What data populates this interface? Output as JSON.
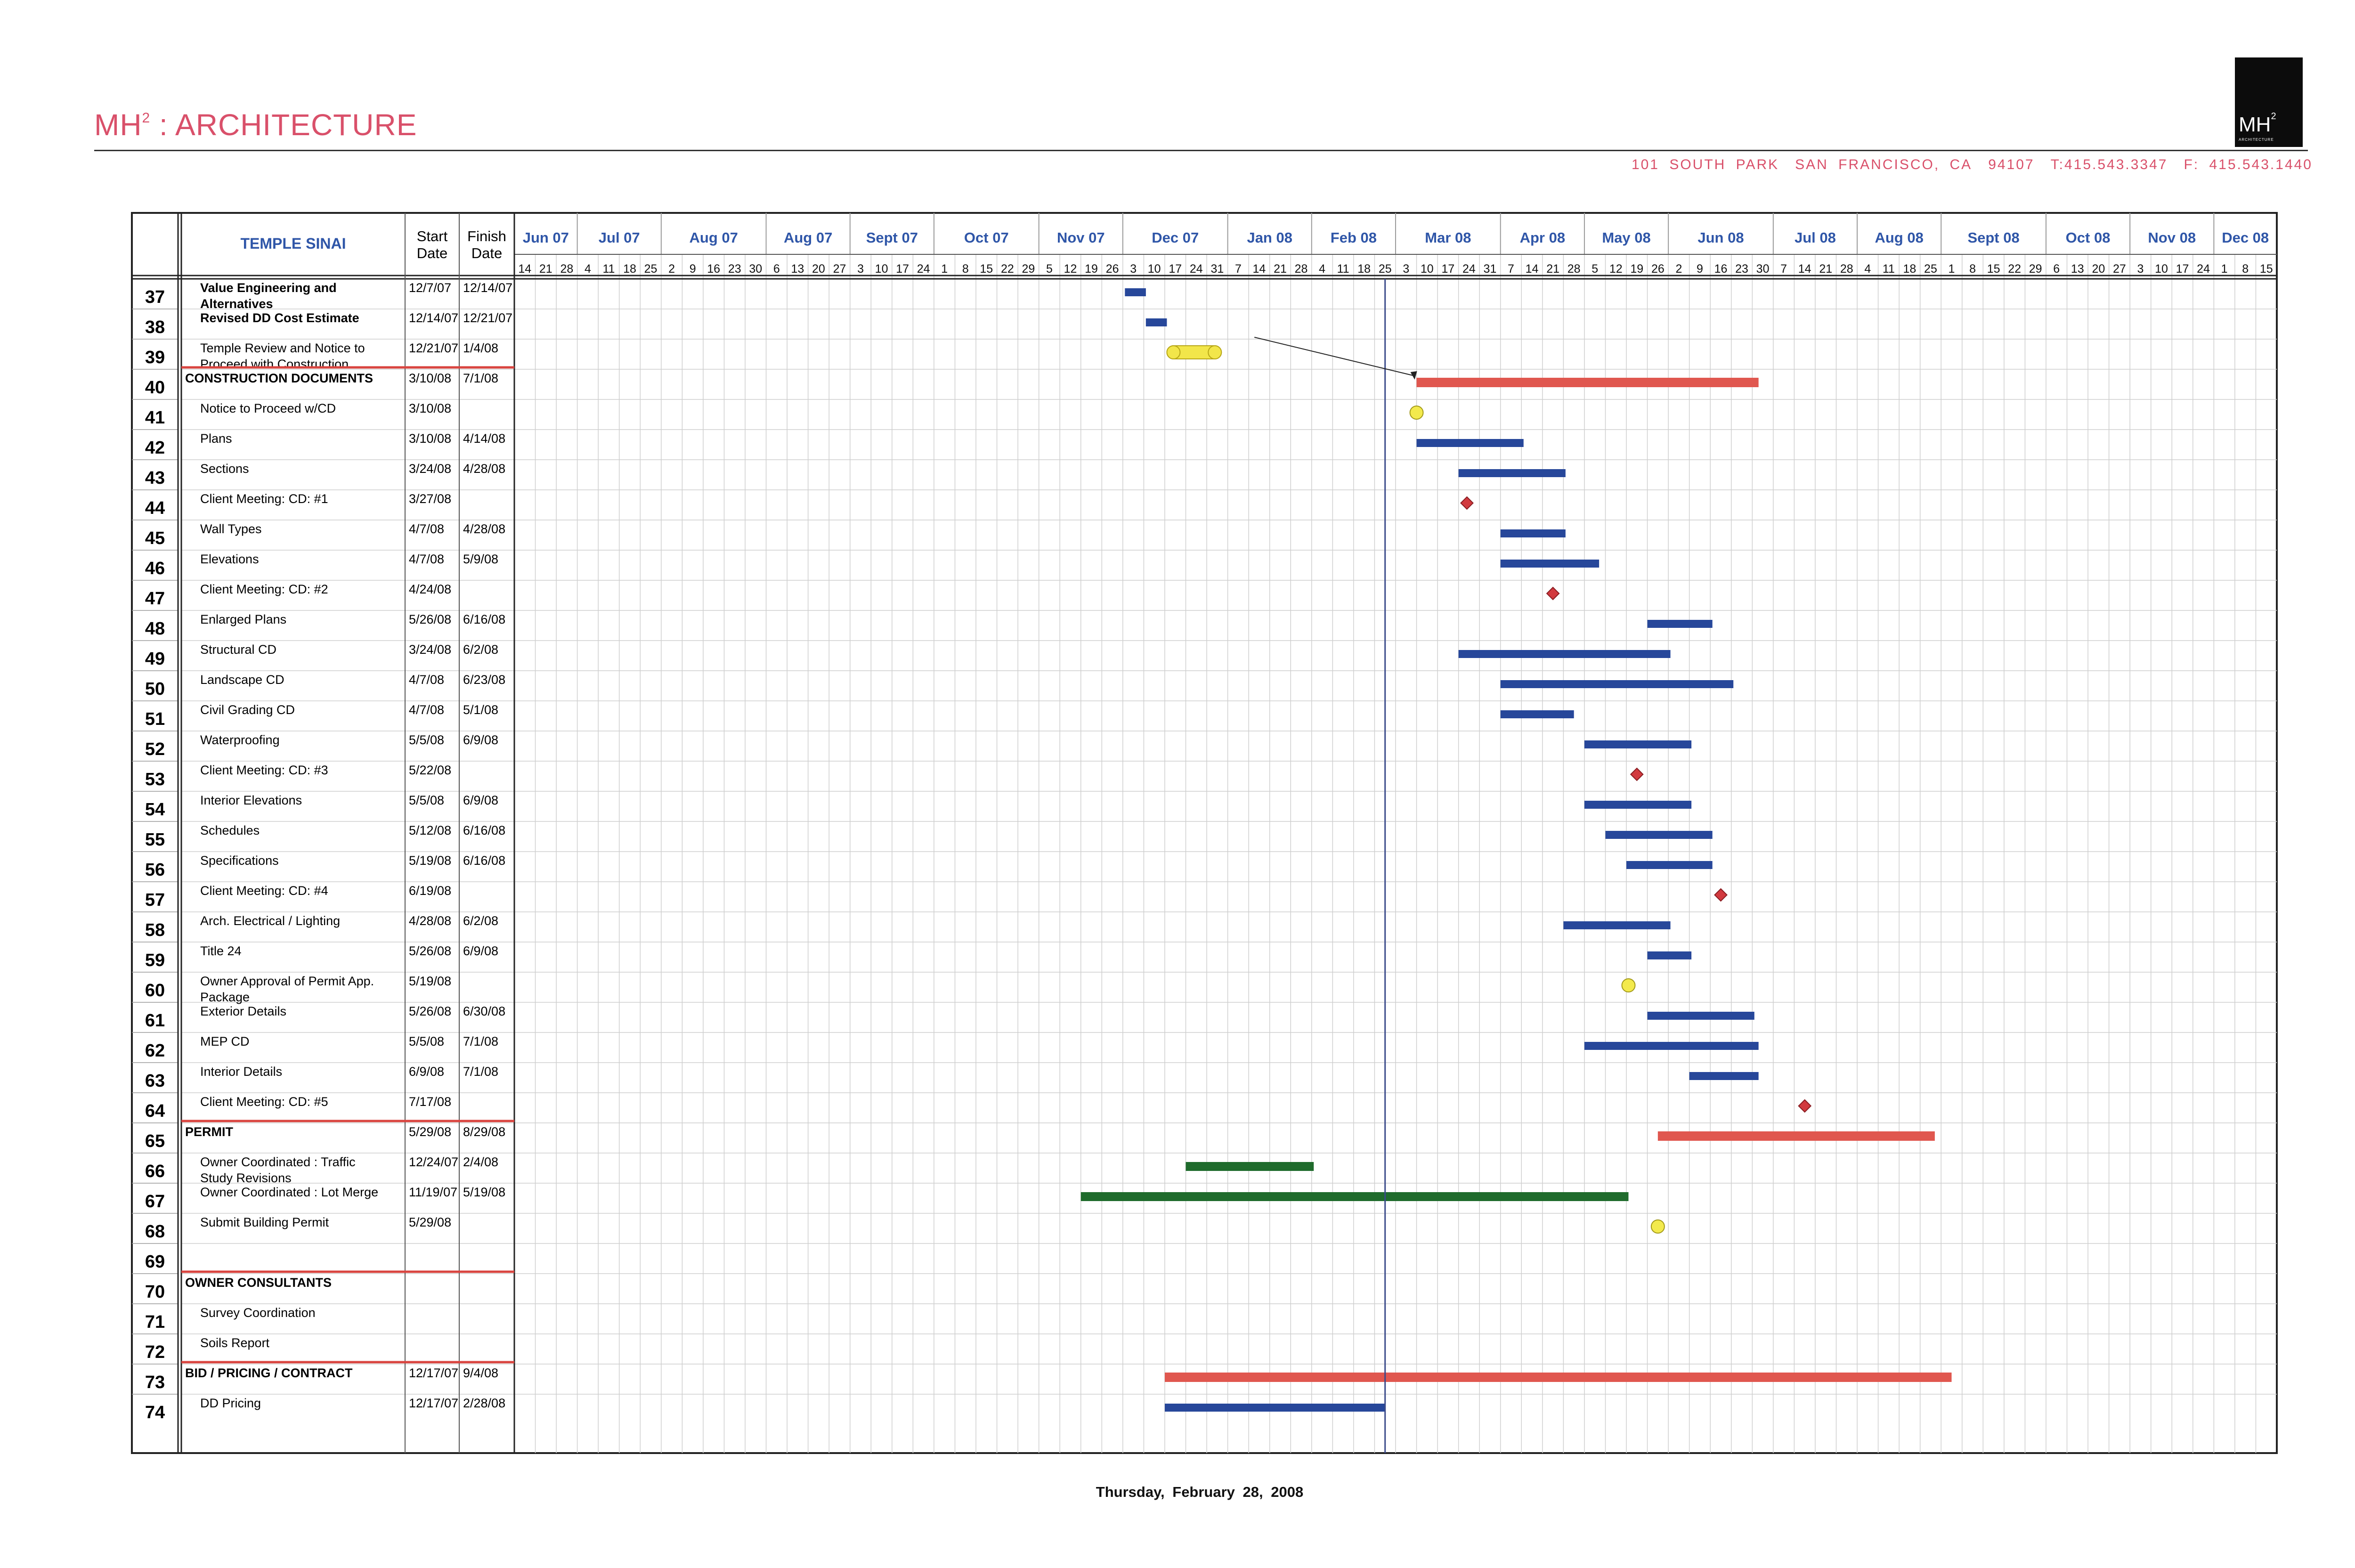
{
  "header": {
    "brand": "MH",
    "brand_sup": "2",
    "brand_rest": " : ARCHITECTURE",
    "logo_mark": "MH",
    "logo_sup": "2",
    "logo_sub": "ARCHITECTURE",
    "address": [
      "101 SOUTH PARK",
      "SAN FRANCISCO, CA",
      "94107",
      "T:415.543.3347",
      "F: 415.543.1440"
    ]
  },
  "table": {
    "project": "TEMPLE SINAI",
    "col_start": [
      "Start",
      "Date"
    ],
    "col_finish": [
      "Finish",
      "Date"
    ]
  },
  "footer": {
    "date": "Thursday,  February  28,  2008"
  },
  "chart_data": {
    "type": "gantt",
    "months": [
      {
        "label": "Jun 07",
        "weeks": [
          "14",
          "21",
          "28"
        ]
      },
      {
        "label": "Jul 07",
        "weeks": [
          "4",
          "11",
          "18",
          "25"
        ]
      },
      {
        "label": "Aug 07",
        "weeks": [
          "2",
          "9",
          "16",
          "23",
          "30"
        ]
      },
      {
        "label": "Aug 07",
        "weeks": [
          "6",
          "13",
          "20",
          "27"
        ]
      },
      {
        "label": "Sept 07",
        "weeks": [
          "3",
          "10",
          "17",
          "24"
        ]
      },
      {
        "label": "Oct 07",
        "weeks": [
          "1",
          "8",
          "15",
          "22",
          "29"
        ]
      },
      {
        "label": "Nov 07",
        "weeks": [
          "5",
          "12",
          "19",
          "26"
        ]
      },
      {
        "label": "Dec 07",
        "weeks": [
          "3",
          "10",
          "17",
          "24",
          "31"
        ]
      },
      {
        "label": "Jan 08",
        "weeks": [
          "7",
          "14",
          "21",
          "28"
        ]
      },
      {
        "label": "Feb 08",
        "weeks": [
          "4",
          "11",
          "18",
          "25"
        ]
      },
      {
        "label": "Mar 08",
        "weeks": [
          "3",
          "10",
          "17",
          "24",
          "31"
        ]
      },
      {
        "label": "Apr 08",
        "weeks": [
          "7",
          "14",
          "21",
          "28"
        ]
      },
      {
        "label": "May 08",
        "weeks": [
          "5",
          "12",
          "19",
          "26"
        ]
      },
      {
        "label": "Jun 08",
        "weeks": [
          "2",
          "9",
          "16",
          "23",
          "30"
        ]
      },
      {
        "label": "Jul 08",
        "weeks": [
          "7",
          "14",
          "21",
          "28"
        ]
      },
      {
        "label": "Aug 08",
        "weeks": [
          "4",
          "11",
          "18",
          "25"
        ]
      },
      {
        "label": "Sept 08",
        "weeks": [
          "1",
          "8",
          "15",
          "22",
          "29"
        ]
      },
      {
        "label": "Oct 08",
        "weeks": [
          "6",
          "13",
          "20",
          "27"
        ]
      },
      {
        "label": "Nov 08",
        "weeks": [
          "3",
          "10",
          "17",
          "24"
        ]
      },
      {
        "label": "Dec 08",
        "weeks": [
          "1",
          "8",
          "15"
        ]
      }
    ],
    "today_week": 41.5,
    "rows": [
      {
        "id": "37",
        "name": "Value Engineering and Alternatives",
        "bold": true,
        "start": "12/7/07",
        "finish": "12/14/07",
        "bar": {
          "s": 29.1,
          "e": 30.1,
          "kind": "task"
        }
      },
      {
        "id": "38",
        "name": "Revised DD Cost Estimate",
        "bold": true,
        "start": "12/14/07",
        "finish": "12/21/07",
        "bar": {
          "s": 30.1,
          "e": 31.1,
          "kind": "task"
        }
      },
      {
        "id": "39",
        "name": "Temple Review and Notice to Proceed with Construction",
        "start": "12/21/07",
        "finish": "1/4/08",
        "bar": {
          "s": 31.1,
          "e": 33.7,
          "kind": "review"
        }
      },
      {
        "id": "40",
        "name": "CONSTRUCTION DOCUMENTS",
        "bold": true,
        "summary": true,
        "start": "3/10/08",
        "finish": "7/1/08",
        "bar": {
          "s": 43.0,
          "e": 59.3,
          "kind": "summary"
        }
      },
      {
        "id": "41",
        "name": "Notice to Proceed w/CD",
        "start": "3/10/08",
        "finish": "",
        "bar": {
          "s": 43.0,
          "kind": "circle"
        }
      },
      {
        "id": "42",
        "name": "Plans",
        "start": "3/10/08",
        "finish": "4/14/08",
        "bar": {
          "s": 43.0,
          "e": 48.1,
          "kind": "task"
        }
      },
      {
        "id": "43",
        "name": "Sections",
        "start": "3/24/08",
        "finish": "4/28/08",
        "bar": {
          "s": 45.0,
          "e": 50.1,
          "kind": "task"
        }
      },
      {
        "id": "44",
        "name": "Client Meeting: CD: #1",
        "start": "3/27/08",
        "finish": "",
        "bar": {
          "s": 45.4,
          "kind": "diamond"
        }
      },
      {
        "id": "45",
        "name": "Wall Types",
        "start": "4/7/08",
        "finish": "4/28/08",
        "bar": {
          "s": 47.0,
          "e": 50.1,
          "kind": "task"
        }
      },
      {
        "id": "46",
        "name": "Elevations",
        "start": "4/7/08",
        "finish": "5/9/08",
        "bar": {
          "s": 47.0,
          "e": 51.7,
          "kind": "task"
        }
      },
      {
        "id": "47",
        "name": "Client Meeting: CD: #2",
        "start": "4/24/08",
        "finish": "",
        "bar": {
          "s": 49.5,
          "kind": "diamond"
        }
      },
      {
        "id": "48",
        "name": "Enlarged Plans",
        "start": "5/26/08",
        "finish": "6/16/08",
        "bar": {
          "s": 54.0,
          "e": 57.1,
          "kind": "task"
        }
      },
      {
        "id": "49",
        "name": "Structural CD",
        "start": "3/24/08",
        "finish": "6/2/08",
        "bar": {
          "s": 45.0,
          "e": 55.1,
          "kind": "task"
        }
      },
      {
        "id": "50",
        "name": "Landscape CD",
        "start": "4/7/08",
        "finish": "6/23/08",
        "bar": {
          "s": 47.0,
          "e": 58.1,
          "kind": "task"
        }
      },
      {
        "id": "51",
        "name": "Civil Grading CD",
        "start": "4/7/08",
        "finish": "5/1/08",
        "bar": {
          "s": 47.0,
          "e": 50.5,
          "kind": "task"
        }
      },
      {
        "id": "52",
        "name": "Waterproofing",
        "start": "5/5/08",
        "finish": "6/9/08",
        "bar": {
          "s": 51.0,
          "e": 56.1,
          "kind": "task"
        }
      },
      {
        "id": "53",
        "name": "Client Meeting: CD: #3",
        "start": "5/22/08",
        "finish": "",
        "bar": {
          "s": 53.5,
          "kind": "diamond"
        }
      },
      {
        "id": "54",
        "name": "Interior Elevations",
        "start": "5/5/08",
        "finish": "6/9/08",
        "bar": {
          "s": 51.0,
          "e": 56.1,
          "kind": "task"
        }
      },
      {
        "id": "55",
        "name": "Schedules",
        "start": "5/12/08",
        "finish": "6/16/08",
        "bar": {
          "s": 52.0,
          "e": 57.1,
          "kind": "task"
        }
      },
      {
        "id": "56",
        "name": "Specifications",
        "start": "5/19/08",
        "finish": "6/16/08",
        "bar": {
          "s": 53.0,
          "e": 57.1,
          "kind": "task"
        }
      },
      {
        "id": "57",
        "name": "Client Meeting: CD: #4",
        "start": "6/19/08",
        "finish": "",
        "bar": {
          "s": 57.5,
          "kind": "diamond"
        }
      },
      {
        "id": "58",
        "name": "Arch. Electrical / Lighting",
        "start": "4/28/08",
        "finish": "6/2/08",
        "bar": {
          "s": 50.0,
          "e": 55.1,
          "kind": "task"
        }
      },
      {
        "id": "59",
        "name": "Title 24",
        "start": "5/26/08",
        "finish": "6/9/08",
        "bar": {
          "s": 54.0,
          "e": 56.1,
          "kind": "task"
        }
      },
      {
        "id": "60",
        "name": "Owner Approval of Permit App. Package",
        "start": "5/19/08",
        "finish": "",
        "bar": {
          "s": 53.1,
          "kind": "circle"
        }
      },
      {
        "id": "61",
        "name": "Exterior Details",
        "start": "5/26/08",
        "finish": "6/30/08",
        "bar": {
          "s": 54.0,
          "e": 59.1,
          "kind": "task"
        }
      },
      {
        "id": "62",
        "name": "MEP CD",
        "start": "5/5/08",
        "finish": "7/1/08",
        "bar": {
          "s": 51.0,
          "e": 59.3,
          "kind": "task"
        }
      },
      {
        "id": "63",
        "name": "Interior Details",
        "start": "6/9/08",
        "finish": "7/1/08",
        "bar": {
          "s": 56.0,
          "e": 59.3,
          "kind": "task"
        }
      },
      {
        "id": "64",
        "name": "Client Meeting: CD: #5",
        "start": "7/17/08",
        "finish": "",
        "bar": {
          "s": 61.5,
          "kind": "diamond"
        }
      },
      {
        "id": "65",
        "name": "PERMIT",
        "bold": true,
        "summary": true,
        "start": "5/29/08",
        "finish": "8/29/08",
        "bar": {
          "s": 54.5,
          "e": 67.7,
          "kind": "summary"
        }
      },
      {
        "id": "66",
        "name": "Owner Coordinated : Traffic Study Revisions",
        "start": "12/24/07",
        "finish": "2/4/08",
        "bar": {
          "s": 32.0,
          "e": 38.1,
          "kind": "owner"
        }
      },
      {
        "id": "67",
        "name": "Owner Coordinated : Lot Merge",
        "start": "11/19/07",
        "finish": "5/19/08",
        "bar": {
          "s": 27.0,
          "e": 53.1,
          "kind": "owner"
        }
      },
      {
        "id": "68",
        "name": "Submit Building Permit",
        "start": "5/29/08",
        "finish": "",
        "bar": {
          "s": 54.5,
          "kind": "circle"
        }
      },
      {
        "id": "69",
        "name": "",
        "start": "",
        "finish": ""
      },
      {
        "id": "70",
        "name": "OWNER CONSULTANTS",
        "bold": true,
        "summary": true,
        "start": "",
        "finish": ""
      },
      {
        "id": "71",
        "name": "Survey Coordination",
        "start": "",
        "finish": ""
      },
      {
        "id": "72",
        "name": "Soils Report",
        "start": "",
        "finish": ""
      },
      {
        "id": "73",
        "name": "BID / PRICING / CONTRACT",
        "bold": true,
        "summary": true,
        "start": "12/17/07",
        "finish": "9/4/08",
        "bar": {
          "s": 31.0,
          "e": 68.5,
          "kind": "summary"
        }
      },
      {
        "id": "74",
        "name": "DD Pricing",
        "start": "12/17/07",
        "finish": "2/28/08",
        "bar": {
          "s": 31.0,
          "e": 41.5,
          "kind": "task"
        }
      }
    ],
    "colors": {
      "task": "#27479a",
      "summary": "#e0574f",
      "owner": "#1f6b2c",
      "review": "#f2e64a",
      "milestone_circle": "#f3ea4d",
      "milestone_diamond": "#d23a3f",
      "today": "#3a4a8a",
      "month_label": "#2f56a8",
      "summary_rule": "#d9443f"
    }
  }
}
